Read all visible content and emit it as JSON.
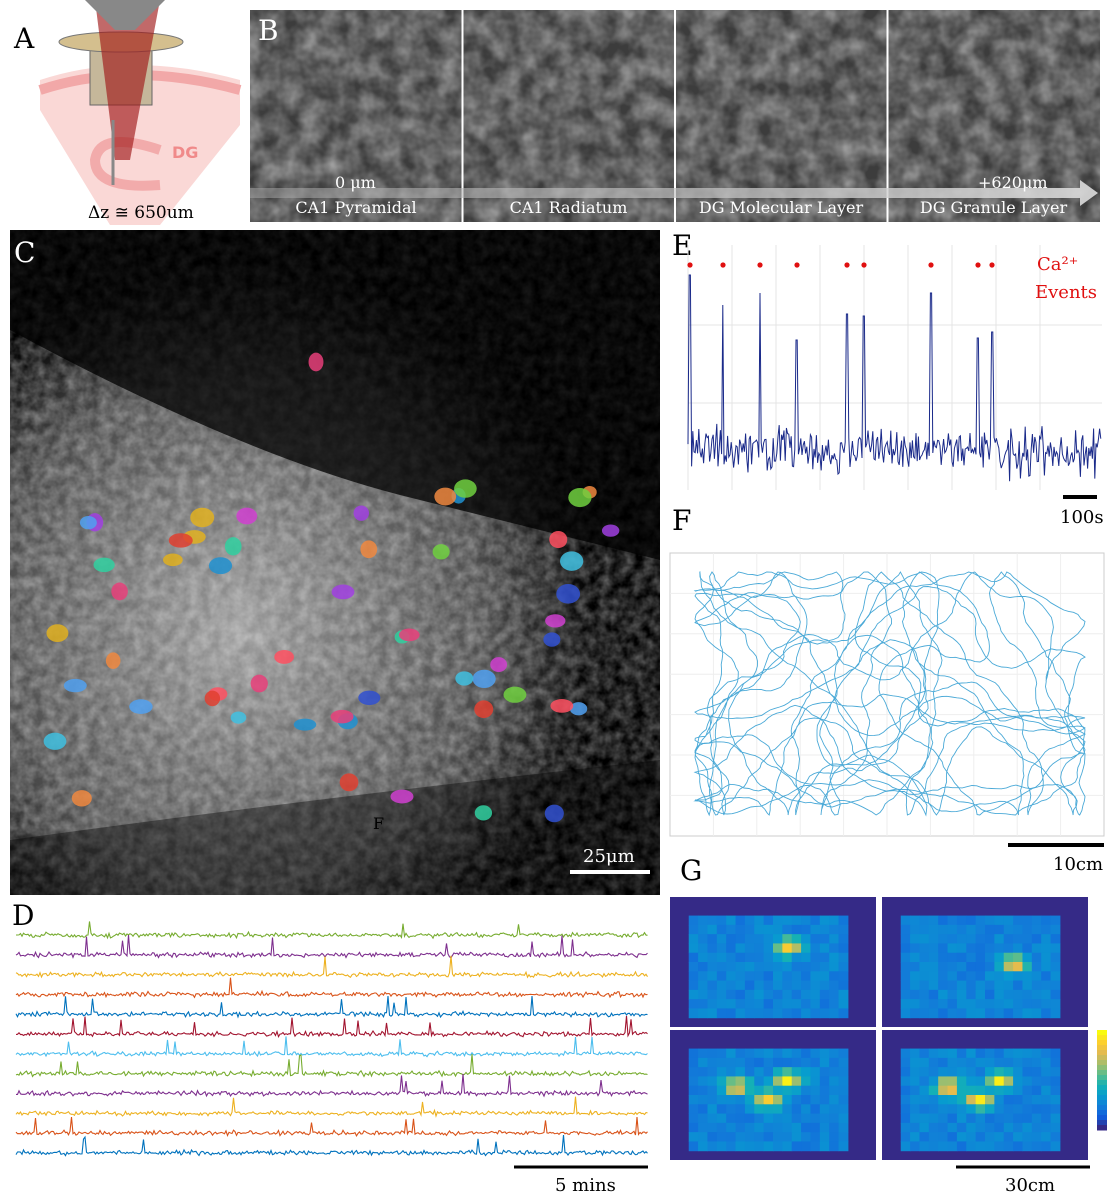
{
  "panels": {
    "a": {
      "label": "A",
      "region": "DG",
      "depth": "Δz ≅ 650um"
    },
    "b": {
      "label": "B",
      "start": "0 μm",
      "end": "+620μm",
      "layers": [
        "CA1 Pyramidal",
        "CA1 Radiatum",
        "DG Molecular Layer",
        "DG Granule Layer"
      ]
    },
    "c": {
      "label": "C",
      "marker": "F",
      "scale": "25μm"
    },
    "d": {
      "label": "D",
      "scale": "5 mins"
    },
    "e": {
      "label": "E",
      "legend_ion": "Ca²⁺",
      "legend_text": "Events",
      "scale": "100s"
    },
    "f": {
      "label": "F",
      "scale": "10cm"
    },
    "g": {
      "label": "G",
      "scale": "30cm"
    }
  }
}
